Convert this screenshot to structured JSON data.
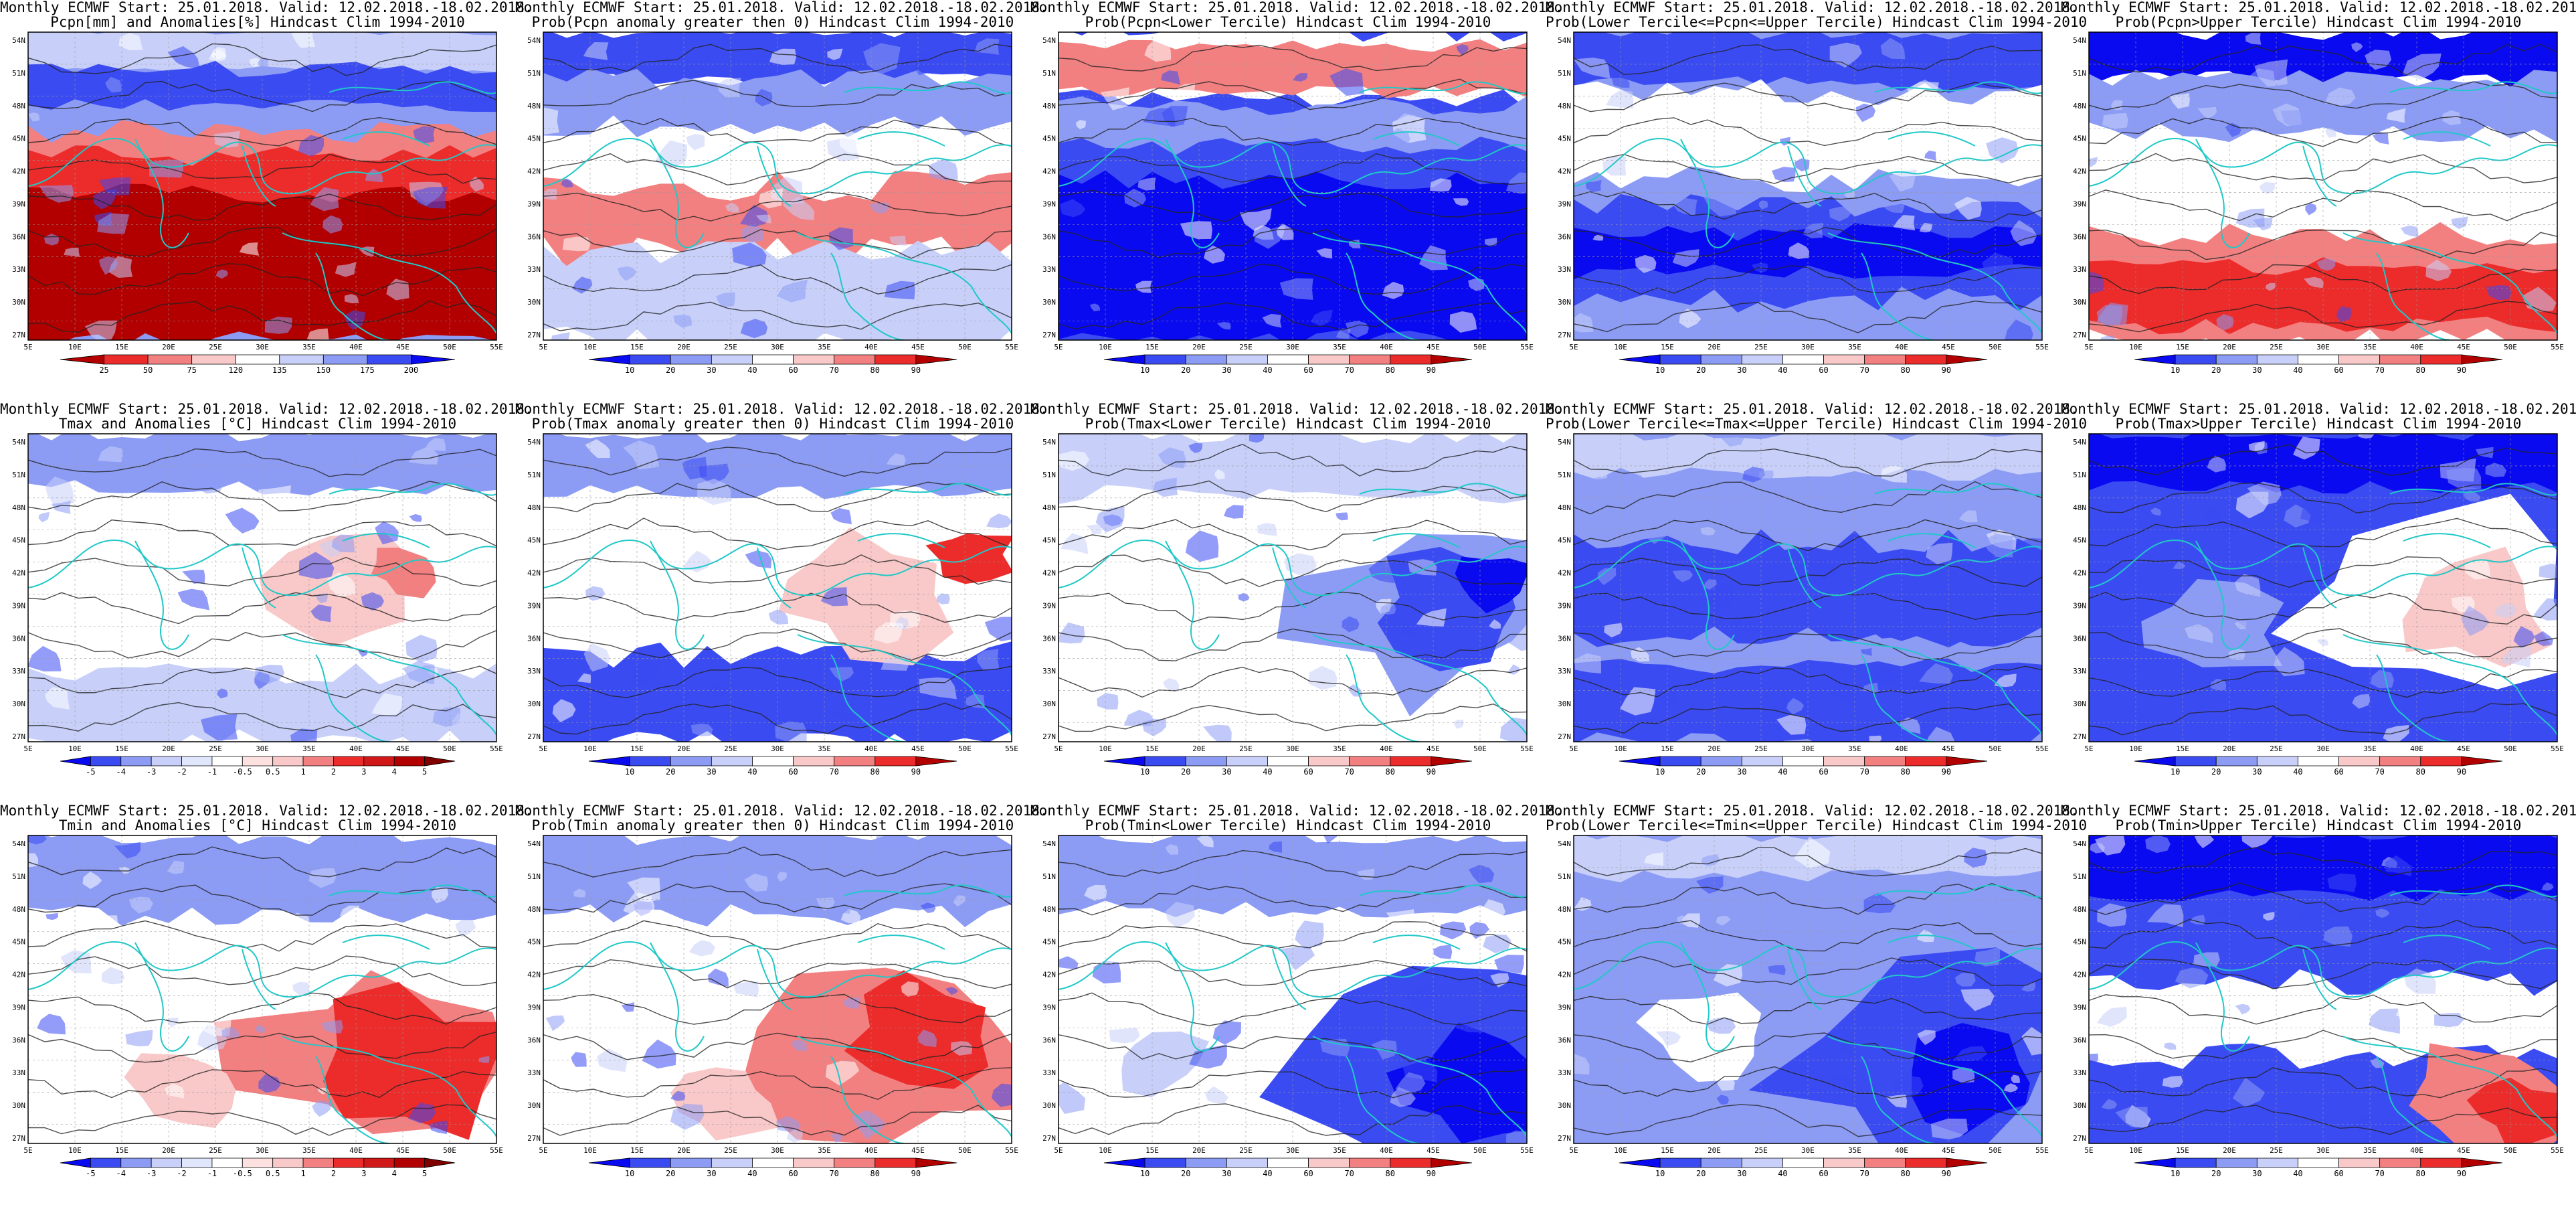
{
  "header_line": "Monthly ECMWF Start: 25.01.2018. Valid: 12.02.2018.-18.02.2018.",
  "lat_labels": [
    "54N",
    "51N",
    "48N",
    "45N",
    "42N",
    "39N",
    "36N",
    "33N",
    "30N",
    "27N"
  ],
  "lon_labels": [
    "5E",
    "10E",
    "15E",
    "20E",
    "25E",
    "30E",
    "35E",
    "40E",
    "45E",
    "50E",
    "55E"
  ],
  "colors": {
    "blue_dark": "#0a0af0",
    "blue_mid": "#3b4bf2",
    "blue_light": "#8c9cf5",
    "blue_pale": "#c8d0fa",
    "white": "#ffffff",
    "pink_pale": "#f9c8c8",
    "red_light": "#f38080",
    "red_mid": "#ec2b2b",
    "red_dark": "#b20000",
    "coast": "#20c8c8",
    "contour": "#222222"
  },
  "prob_ticks": [
    "10",
    "20",
    "30",
    "40",
    "60",
    "70",
    "80",
    "90"
  ],
  "panels": [
    {
      "title": "Pcpn[mm] and Anomalies[%] Hindcast Clim 1994-2010",
      "style": "pcpn_anom",
      "cbar_ticks": [
        "25",
        "50",
        "75",
        "120",
        "135",
        "150",
        "175",
        "200"
      ]
    },
    {
      "title": "Prob(Pcpn anomaly greater then 0) Hindcast Clim 1994-2010",
      "style": "pcpn_prob0"
    },
    {
      "title": "Prob(Pcpn<Lower Tercile) Hindcast Clim 1994-2010",
      "style": "pcpn_low"
    },
    {
      "title": "Prob(Lower Tercile<=Pcpn<=Upper Tercile) Hindcast Clim 1994-2010",
      "style": "pcpn_mid"
    },
    {
      "title": "Prob(Pcpn>Upper Tercile) Hindcast Clim 1994-2010",
      "style": "pcpn_up"
    },
    {
      "title": "Tmax and Anomalies [°C] Hindcast Clim 1994-2010",
      "style": "tmax_anom",
      "cbar_ticks": [
        "-5",
        "-4",
        "-3",
        "-2",
        "-1",
        "-0.5",
        "0.5",
        "1",
        "2",
        "3",
        "4",
        "5"
      ]
    },
    {
      "title": "Prob(Tmax anomaly greater then 0) Hindcast Clim 1994-2010",
      "style": "tmax_prob0"
    },
    {
      "title": "Prob(Tmax<Lower Tercile) Hindcast Clim 1994-2010",
      "style": "tmax_low"
    },
    {
      "title": "Prob(Lower Tercile<=Tmax<=Upper Tercile) Hindcast Clim 1994-2010",
      "style": "tmax_mid"
    },
    {
      "title": "Prob(Tmax>Upper Tercile) Hindcast Clim 1994-2010",
      "style": "tmax_up"
    },
    {
      "title": "Tmin and Anomalies [°C] Hindcast Clim 1994-2010",
      "style": "tmin_anom",
      "cbar_ticks": [
        "-5",
        "-4",
        "-3",
        "-2",
        "-1",
        "-0.5",
        "0.5",
        "1",
        "2",
        "3",
        "4",
        "5"
      ]
    },
    {
      "title": "Prob(Tmin anomaly greater then 0) Hindcast Clim 1994-2010",
      "style": "tmin_prob0"
    },
    {
      "title": "Prob(Tmin<Lower Tercile) Hindcast Clim 1994-2010",
      "style": "tmin_low"
    },
    {
      "title": "Prob(Lower Tercile<=Tmin<=Upper Tercile) Hindcast Clim 1994-2010",
      "style": "tmin_mid"
    },
    {
      "title": "Prob(Tmin>Upper Tercile) Hindcast Clim 1994-2010",
      "style": "tmin_up"
    }
  ]
}
